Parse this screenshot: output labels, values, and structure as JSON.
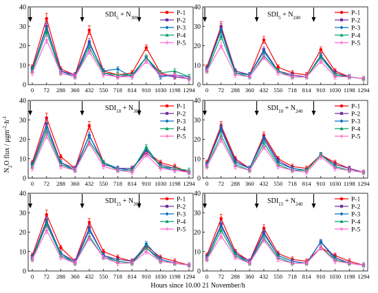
{
  "chart_data": {
    "type": "line",
    "ylabel_base": "N",
    "ylabel_sub": "2",
    "ylabel_main": "O flux / μgm",
    "ylabel_sup1": "-2",
    "ylabel_h": "·h",
    "ylabel_sup2": "-1",
    "xlabel": "Hours since 10.00 21 November/h",
    "x_tick_labels": [
      "0",
      "72",
      "288",
      "360",
      "432",
      "550",
      "718",
      "814",
      "910",
      "1030",
      "1198",
      "1294"
    ],
    "y_ticks": [
      0,
      10,
      20,
      30,
      40
    ],
    "ylim": [
      0,
      40
    ],
    "arrow_tick_indices": [
      0,
      4,
      8
    ],
    "legend_position": "top-right",
    "series_names": [
      "P-1",
      "P-2",
      "P-3",
      "P-4",
      "P-5"
    ],
    "series_colors": [
      "#ff0000",
      "#7030a0",
      "#0070c0",
      "#00a060",
      "#ff66cc"
    ],
    "panels": [
      {
        "title_base": "SDI",
        "title_sub": "5",
        "title_rest": " + N",
        "title_sub2": "300",
        "series": [
          {
            "name": "P-1",
            "values": [
              9,
              34,
              8,
              5,
              28,
              7,
              5,
              6,
              19,
              6,
              4,
              3
            ]
          },
          {
            "name": "P-2",
            "values": [
              8,
              30,
              7,
              5,
              22,
              6,
              4,
              5,
              14,
              5,
              4,
              3
            ]
          },
          {
            "name": "P-3",
            "values": [
              8,
              29,
              7,
              4,
              21,
              7,
              8,
              4,
              14,
              4,
              5,
              4
            ]
          },
          {
            "name": "P-4",
            "values": [
              7,
              27,
              6,
              4,
              19,
              6,
              5,
              5,
              14,
              6,
              7,
              4
            ]
          },
          {
            "name": "P-5",
            "values": [
              6,
              23,
              6,
              4,
              17,
              5,
              4,
              4,
              12,
              5,
              5,
              3
            ]
          }
        ]
      },
      {
        "title_base": "SDI",
        "title_sub": "5",
        "title_rest": " + N",
        "title_sub2": "240",
        "series": [
          {
            "name": "P-1",
            "values": [
              9,
              30,
              7,
              5,
              23,
              9,
              6,
              5,
              18,
              7,
              4,
              3
            ]
          },
          {
            "name": "P-2",
            "values": [
              8,
              29,
              7,
              5,
              18,
              7,
              5,
              4,
              15,
              6,
              4,
              3
            ]
          },
          {
            "name": "P-3",
            "values": [
              8,
              28,
              6,
              5,
              17,
              7,
              4,
              4,
              15,
              5,
              4,
              3
            ]
          },
          {
            "name": "P-4",
            "values": [
              7,
              25,
              6,
              4,
              15,
              7,
              4,
              4,
              14,
              5,
              4,
              3
            ]
          },
          {
            "name": "P-5",
            "values": [
              7,
              20,
              5,
              4,
              14,
              6,
              4,
              4,
              12,
              4,
              4,
              3
            ]
          }
        ]
      },
      {
        "title_base": "SDI",
        "title_sub": "10",
        "title_rest": " + N",
        "title_sub2": "300",
        "series": [
          {
            "name": "P-1",
            "values": [
              8,
              31,
              11,
              5,
              27,
              8,
              5,
              5,
              14,
              8,
              6,
              3
            ]
          },
          {
            "name": "P-2",
            "values": [
              7,
              28,
              8,
              5,
              22,
              7,
              5,
              5,
              13,
              7,
              5,
              3
            ]
          },
          {
            "name": "P-3",
            "values": [
              7,
              26,
              8,
              4,
              22,
              8,
              5,
              4,
              15,
              6,
              4,
              3
            ]
          },
          {
            "name": "P-4",
            "values": [
              6,
              24,
              7,
              4,
              19,
              8,
              4,
              4,
              16,
              6,
              5,
              4
            ]
          },
          {
            "name": "P-5",
            "values": [
              5,
              22,
              6,
              4,
              18,
              6,
              4,
              3,
              12,
              5,
              4,
              3
            ]
          }
        ]
      },
      {
        "title_base": "SDI",
        "title_sub": "10",
        "title_rest": " + N",
        "title_sub2": "240",
        "series": [
          {
            "name": "P-1",
            "values": [
              8,
              27,
              10,
              5,
              22,
              10,
              6,
              5,
              12,
              8,
              5,
              3
            ]
          },
          {
            "name": "P-2",
            "values": [
              7,
              26,
              9,
              5,
              21,
              9,
              5,
              4,
              12,
              7,
              5,
              3
            ]
          },
          {
            "name": "P-3",
            "values": [
              7,
              25,
              8,
              5,
              20,
              8,
              5,
              4,
              12,
              6,
              4,
              3
            ]
          },
          {
            "name": "P-4",
            "values": [
              6,
              22,
              7,
              4,
              18,
              7,
              4,
              4,
              12,
              6,
              4,
              3
            ]
          },
          {
            "name": "P-5",
            "values": [
              6,
              20,
              6,
              4,
              16,
              6,
              4,
              3,
              11,
              5,
              4,
              3
            ]
          }
        ]
      },
      {
        "title_base": "SDI",
        "title_sub": "15",
        "title_rest": " + N",
        "title_sub2": "300",
        "series": [
          {
            "name": "P-1",
            "values": [
              8,
              29,
              12,
              5,
              25,
              10,
              7,
              5,
              13,
              7,
              5,
              3
            ]
          },
          {
            "name": "P-2",
            "values": [
              7,
              26,
              9,
              5,
              22,
              8,
              6,
              5,
              12,
              6,
              4,
              3
            ]
          },
          {
            "name": "P-3",
            "values": [
              7,
              25,
              9,
              4,
              21,
              8,
              5,
              4,
              14,
              6,
              4,
              3
            ]
          },
          {
            "name": "P-4",
            "values": [
              6,
              24,
              8,
              4,
              18,
              7,
              5,
              4,
              12,
              5,
              4,
              3
            ]
          },
          {
            "name": "P-5",
            "values": [
              6,
              21,
              7,
              4,
              17,
              7,
              4,
              4,
              10,
              5,
              4,
              3
            ]
          }
        ]
      },
      {
        "title_base": "SDI",
        "title_sub": "15",
        "title_rest": " + N",
        "title_sub2": "240",
        "series": [
          {
            "name": "P-1",
            "values": [
              8,
              27,
              10,
              5,
              22,
              9,
              6,
              5,
              12,
              8,
              5,
              3
            ]
          },
          {
            "name": "P-2",
            "values": [
              7,
              24,
              9,
              5,
              20,
              8,
              5,
              4,
              15,
              7,
              4,
              3
            ]
          },
          {
            "name": "P-3",
            "values": [
              7,
              23,
              9,
              4,
              19,
              8,
              5,
              4,
              15,
              6,
              4,
              3
            ]
          },
          {
            "name": "P-4",
            "values": [
              6,
              21,
              8,
              4,
              17,
              7,
              4,
              4,
              12,
              6,
              4,
              3
            ]
          },
          {
            "name": "P-5",
            "values": [
              6,
              18,
              7,
              4,
              16,
              6,
              4,
              4,
              12,
              5,
              4,
              3
            ]
          }
        ]
      }
    ]
  }
}
